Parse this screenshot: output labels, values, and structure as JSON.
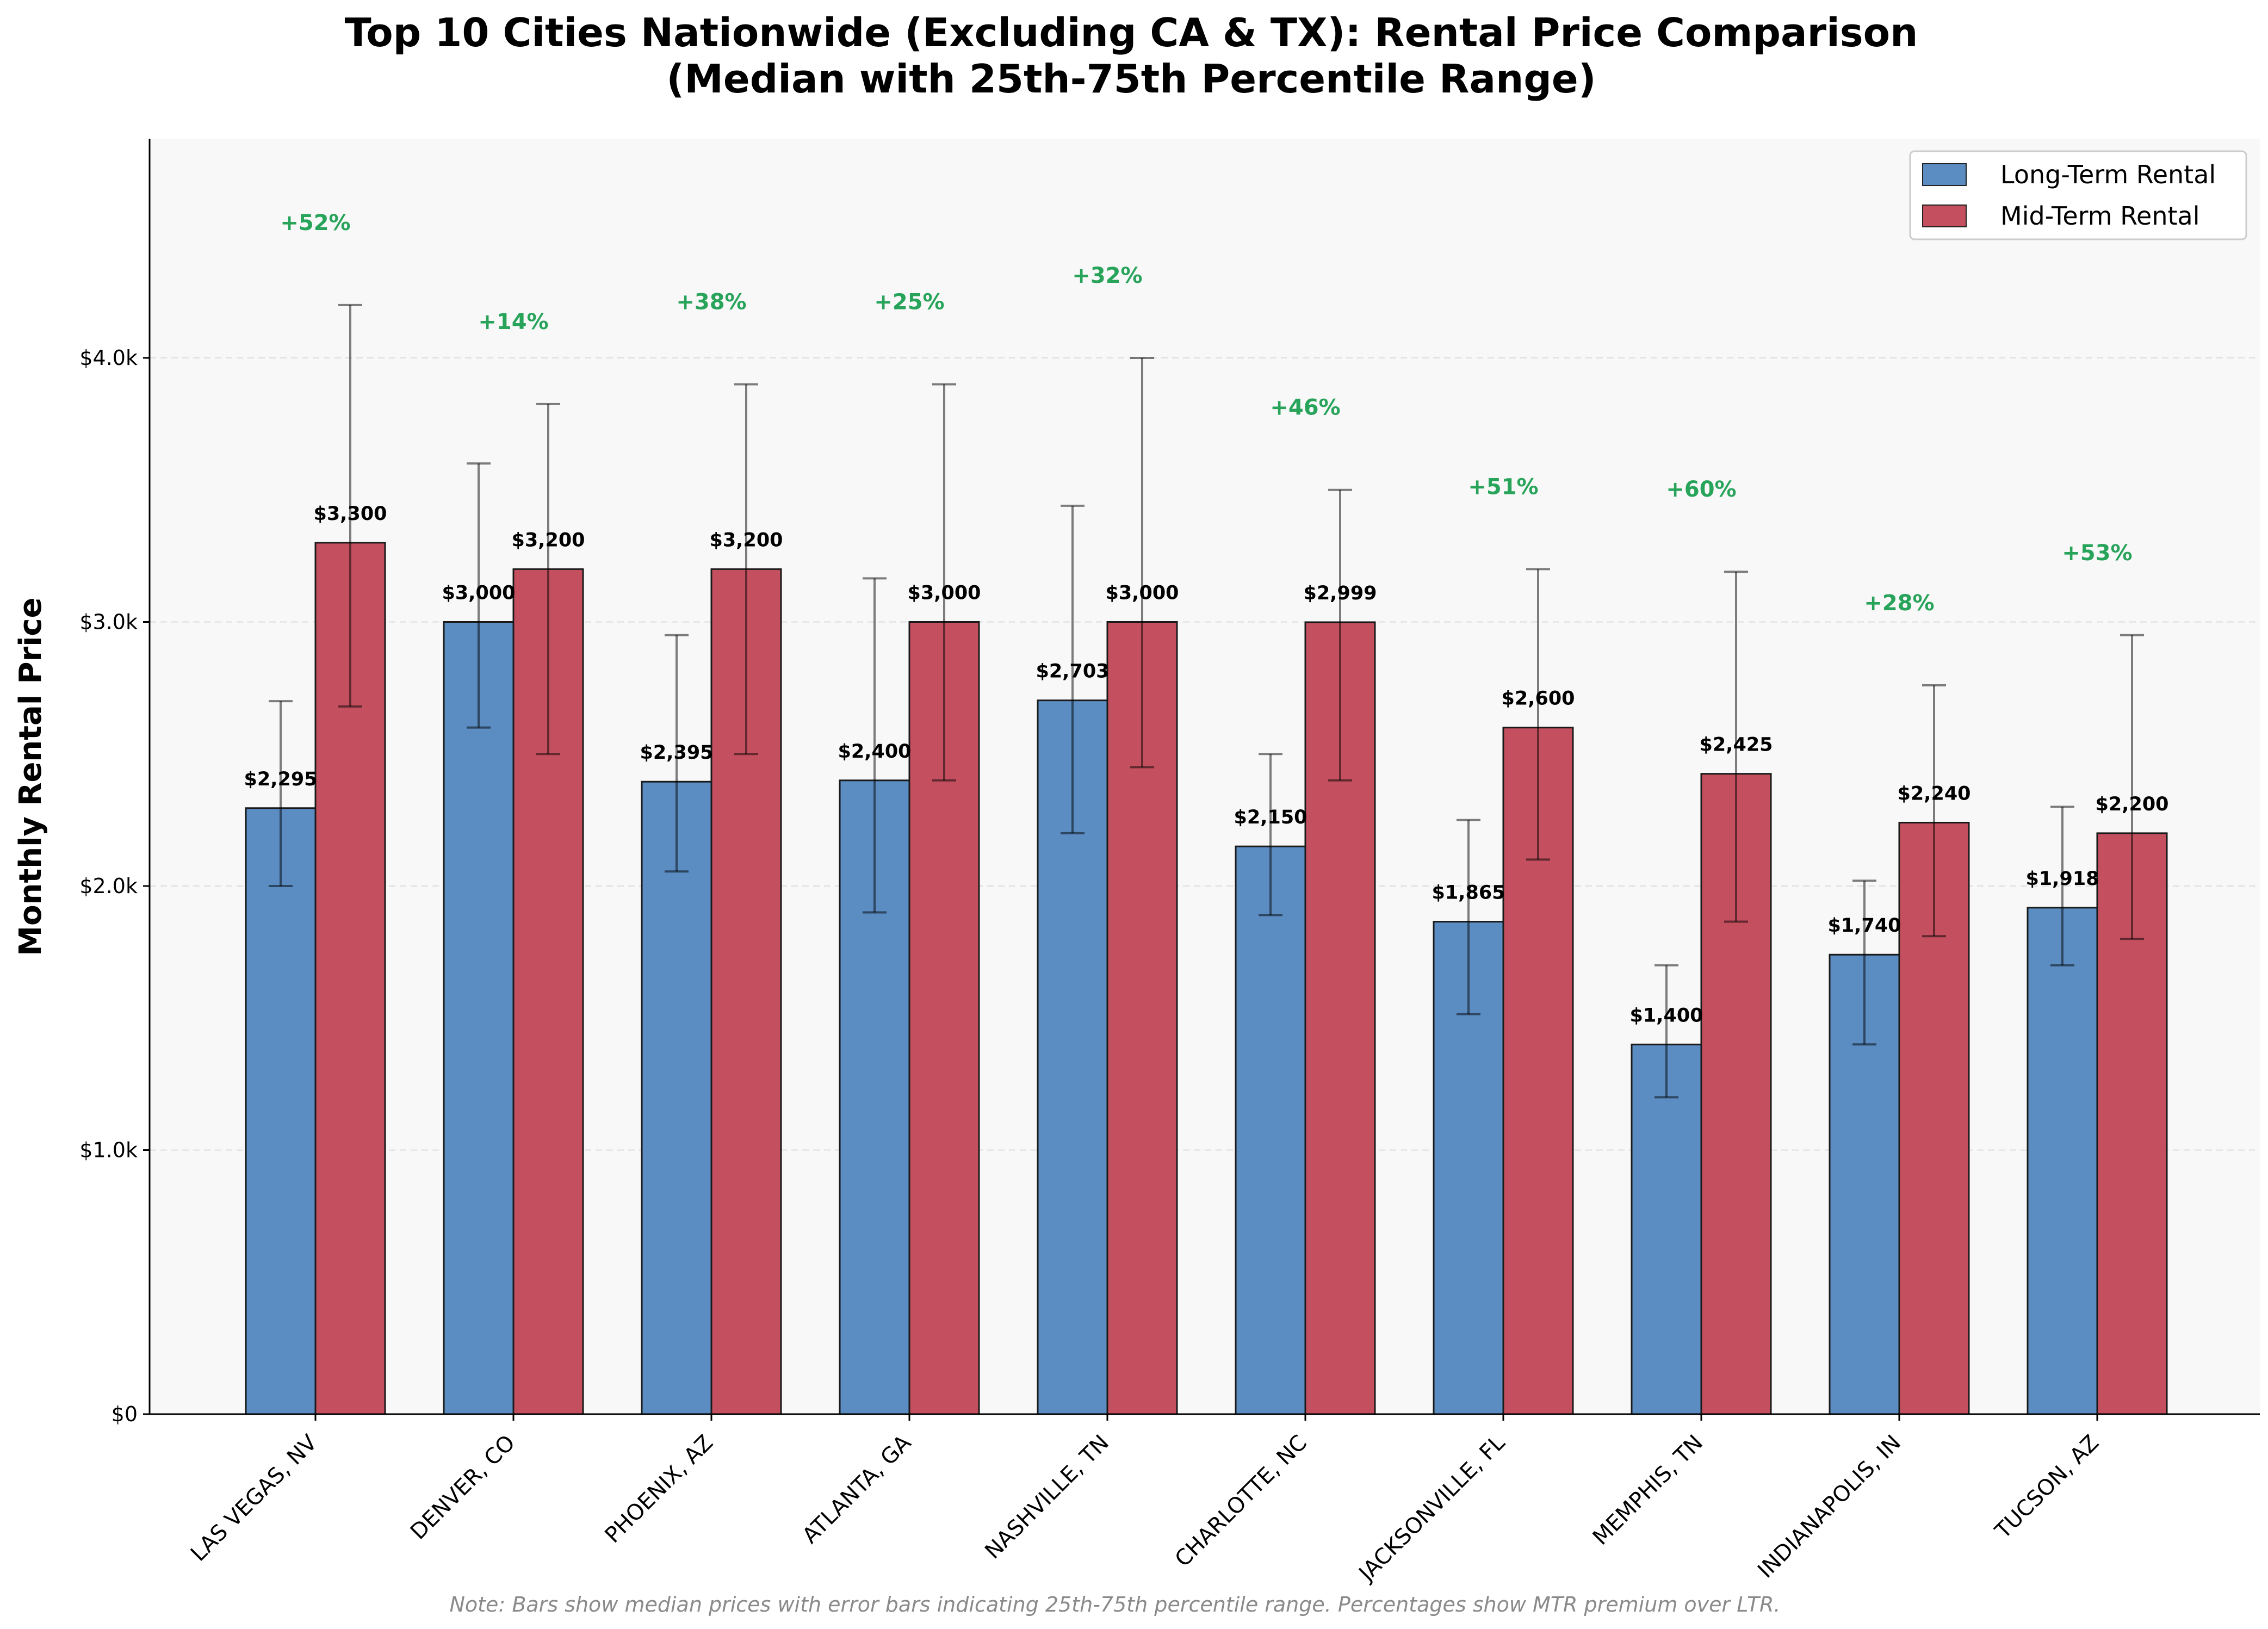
{
  "chart_data": {
    "type": "bar",
    "title": "Top 10 Cities Nationwide (Excluding CA & TX): Rental Price Comparison",
    "subtitle": "(Median with 25th-75th Percentile Range)",
    "xlabel": "",
    "ylabel": "Monthly Rental Price",
    "ylim": [
      0,
      4830
    ],
    "yticks": [
      0,
      1000,
      2000,
      3000,
      4000
    ],
    "ytick_labels": [
      "$0",
      "$1.0k",
      "$2.0k",
      "$3.0k",
      "$4.0k"
    ],
    "grid": "y-dashed",
    "legend_position": "top-right",
    "categories": [
      "LAS VEGAS, NV",
      "DENVER, CO",
      "PHOENIX, AZ",
      "ATLANTA, GA",
      "NASHVILLE, TN",
      "CHARLOTTE, NC",
      "JACKSONVILLE, FL",
      "MEMPHIS, TN",
      "INDIANAPOLIS, IN",
      "TUCSON, AZ"
    ],
    "series": [
      {
        "name": "Long-Term Rental",
        "color": "#5b8cc2",
        "values": [
          2295,
          3000,
          2395,
          2400,
          2703,
          2150,
          1865,
          1400,
          1740,
          1918
        ],
        "labels": [
          "$2,295",
          "$3,000",
          "$2,395",
          "$2,400",
          "$2,703",
          "$2,150",
          "$1,865",
          "$1,400",
          "$1,740",
          "$1,918"
        ],
        "p25": [
          2000,
          2600,
          2055,
          1900,
          2200,
          1890,
          1515,
          1200,
          1400,
          1700
        ],
        "p75": [
          2700,
          3600,
          2950,
          3165,
          3440,
          2500,
          2250,
          1700,
          2020,
          2300
        ]
      },
      {
        "name": "Mid-Term Rental",
        "color": "#c4505f",
        "values": [
          3300,
          3200,
          3200,
          3000,
          3000,
          2999,
          2600,
          2425,
          2240,
          2200
        ],
        "labels": [
          "$3,300",
          "$3,200",
          "$3,200",
          "$3,000",
          "$3,000",
          "$2,999",
          "$2,600",
          "$2,425",
          "$2,240",
          "$2,200"
        ],
        "p25": [
          2680,
          2500,
          2500,
          2400,
          2450,
          2400,
          2100,
          1865,
          1810,
          1800
        ],
        "p75": [
          4200,
          3825,
          3900,
          3900,
          4000,
          3500,
          3200,
          3190,
          2760,
          2950
        ]
      }
    ],
    "premium_labels": [
      "+52%",
      "+14%",
      "+38%",
      "+25%",
      "+32%",
      "+46%",
      "+51%",
      "+60%",
      "+28%",
      "+53%"
    ],
    "premium_color": "#27a35a",
    "note": "Note: Bars show median prices with error bars indicating 25th-75th percentile range. Percentages show MTR premium over LTR."
  }
}
